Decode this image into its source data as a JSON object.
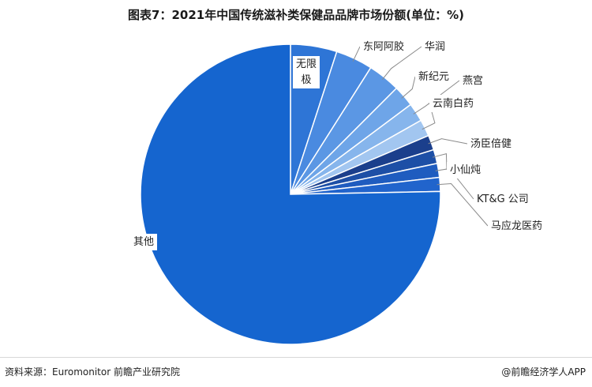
{
  "title": "图表7：2021年中国传统滋补类保健品品牌市场份额(单位：%)",
  "source": "资料来源：Euromonitor 前瞻产业研究院",
  "credit": "@前瞻经济学人APP",
  "chart_data": {
    "type": "pie",
    "title": "图表7：2021年中国传统滋补类保健品品牌市场份额(单位：%)",
    "slices": [
      {
        "label": "无限极",
        "value": 5.0,
        "color": "#2e75d6"
      },
      {
        "label": "东阿阿胶",
        "value": 4.0,
        "color": "#4a8ae0"
      },
      {
        "label": "华润",
        "value": 3.5,
        "color": "#5b97e4"
      },
      {
        "label": "新纪元",
        "value": 2.3,
        "color": "#6ea5e8"
      },
      {
        "label": "燕宫",
        "value": 2.0,
        "color": "#86b5ec"
      },
      {
        "label": "云南白药",
        "value": 1.8,
        "color": "#a2c6f0"
      },
      {
        "label": "汤臣倍健",
        "value": 1.6,
        "color": "#1b3f8c"
      },
      {
        "label": "小仙炖",
        "value": 1.5,
        "color": "#1d4fa6"
      },
      {
        "label": "KT&G 公司",
        "value": 1.5,
        "color": "#1f5cbf"
      },
      {
        "label": "马应龙医药",
        "value": 1.5,
        "color": "#2164cc"
      },
      {
        "label": "其他",
        "value": 75.3,
        "color": "#1565cf"
      }
    ],
    "legend": "none"
  }
}
